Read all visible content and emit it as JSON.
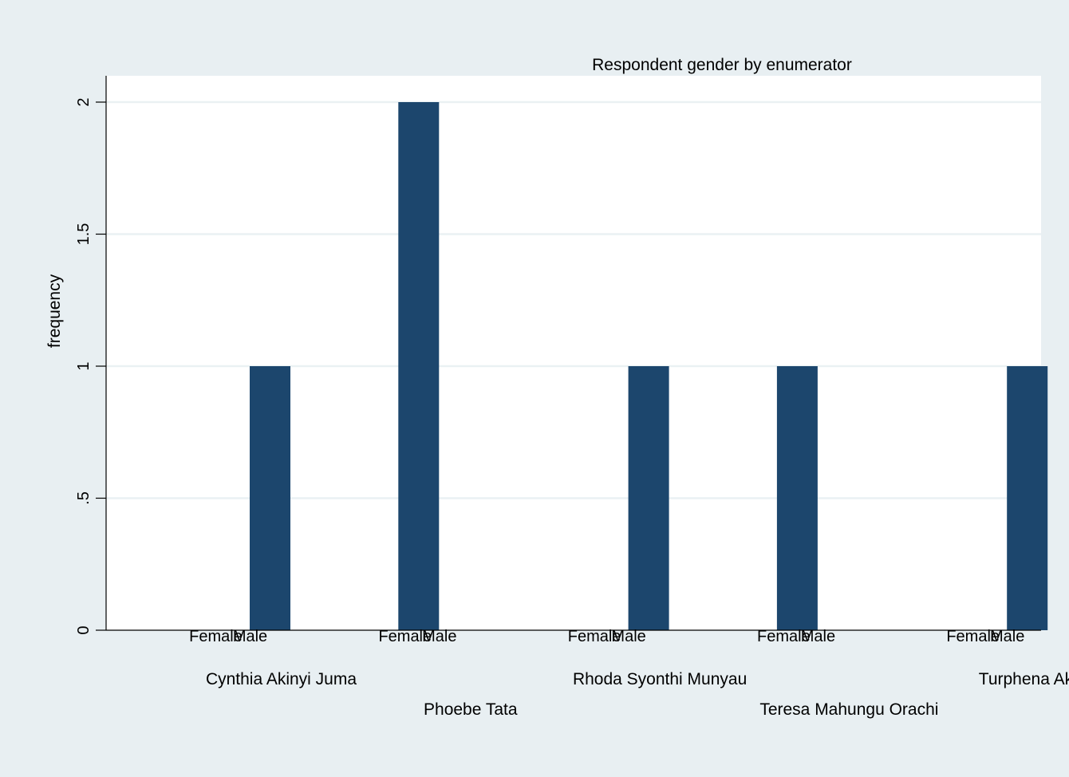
{
  "chart_data": {
    "type": "bar",
    "title": "Respondent gender by enumerator",
    "ylabel": "frequency",
    "xlabel": "",
    "ylim": [
      0,
      2
    ],
    "yticks": [
      "0",
      ".5",
      "1",
      "1.5",
      "2"
    ],
    "ytick_values": [
      0,
      0.5,
      1,
      1.5,
      2
    ],
    "grid": true,
    "legend": "none",
    "colors": {
      "bar": "#1c466d",
      "plot_bg": "#ffffff",
      "outer_bg": "#e8eff2",
      "grid": "#eaf1f3"
    },
    "groups": [
      {
        "enumerator": "Cynthia Akinyi Juma",
        "categories": [
          "Female",
          "Male"
        ],
        "values": [
          0,
          1
        ]
      },
      {
        "enumerator": "Phoebe Tata",
        "categories": [
          "Female",
          "Male"
        ],
        "values": [
          2,
          0
        ]
      },
      {
        "enumerator": "Rhoda Syonthi Munyau",
        "categories": [
          "Female",
          "Male"
        ],
        "values": [
          0,
          1
        ]
      },
      {
        "enumerator": "Teresa Mahungu Orachi",
        "categories": [
          "Female",
          "Male"
        ],
        "values": [
          1,
          0
        ]
      },
      {
        "enumerator": "Turphena Akinyi",
        "categories": [
          "Female",
          "Male"
        ],
        "values": [
          0,
          1
        ]
      }
    ]
  }
}
